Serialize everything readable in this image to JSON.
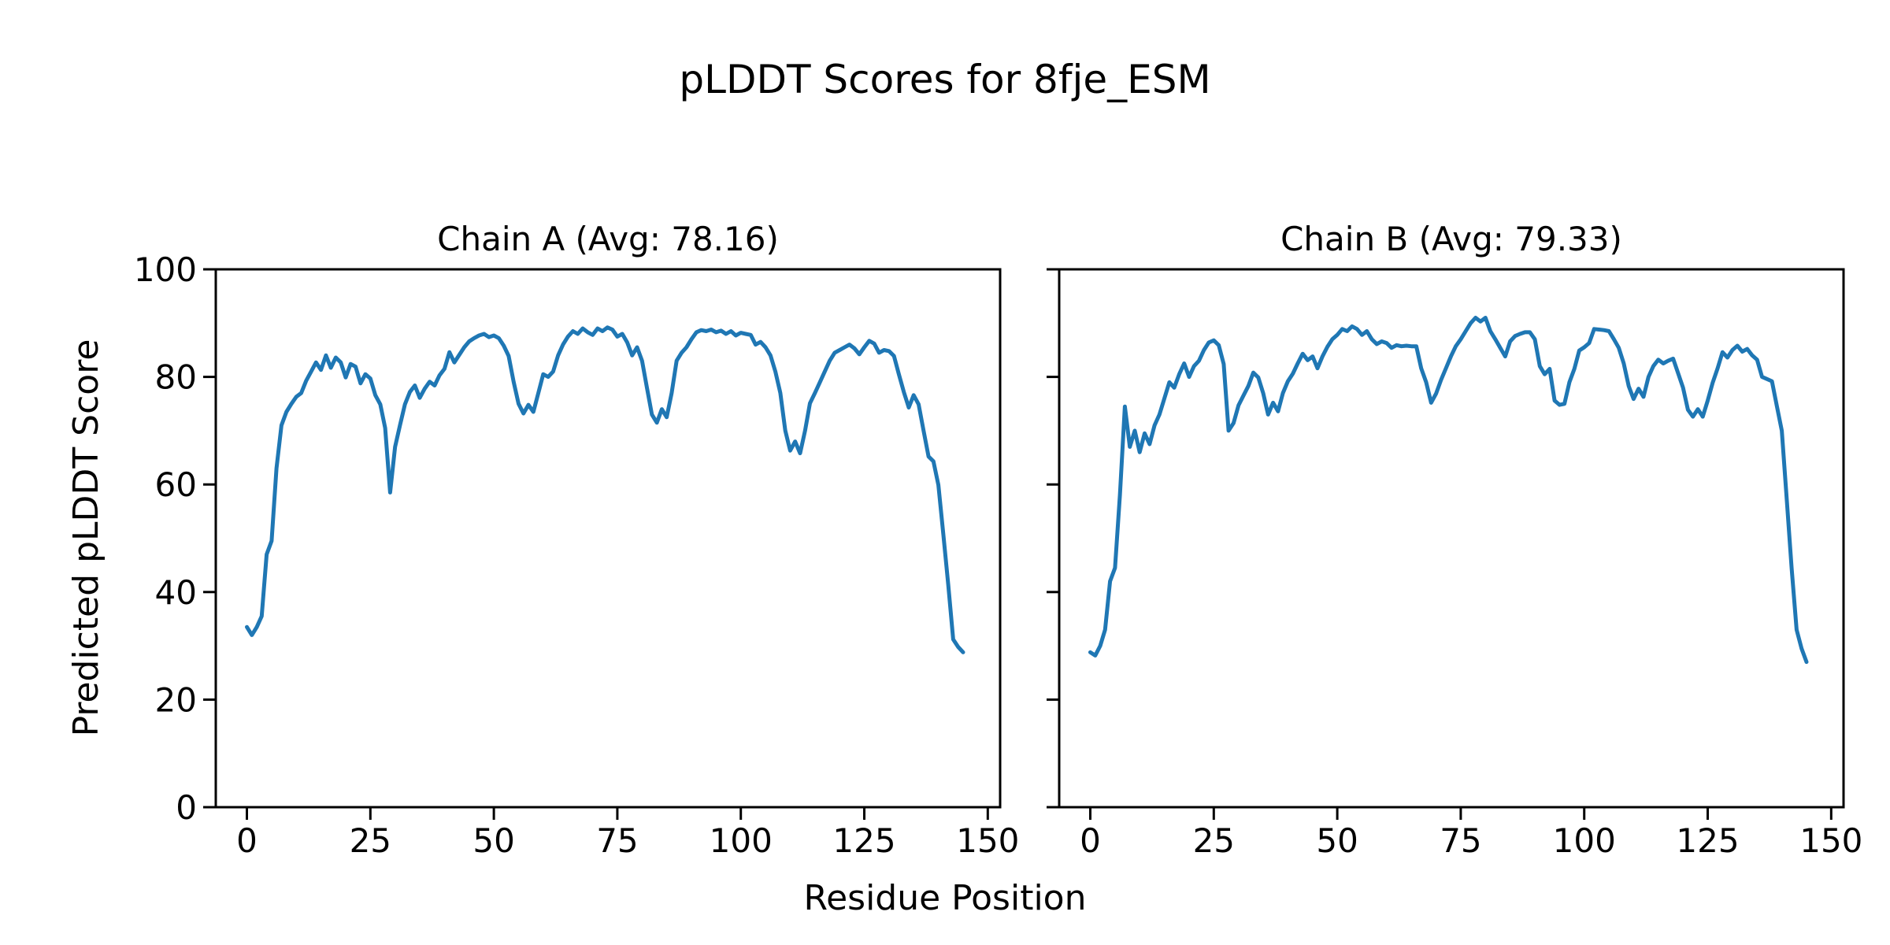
{
  "figure": {
    "title": "pLDDT Scores for 8fje_ESM",
    "xlabel": "Residue Position",
    "ylabel": "Predicted pLDDT Score",
    "background_color": "#ffffff",
    "line_color": "#1f77b4",
    "spine_color": "#000000"
  },
  "chart_data": [
    {
      "type": "line",
      "chain": "A",
      "title": "Chain A (Avg: 78.16)",
      "avg": 78.16,
      "legend": "none",
      "grid": false,
      "x_ticks": [
        0,
        25,
        50,
        75,
        100,
        125,
        150
      ],
      "y_ticks": [
        0,
        20,
        40,
        60,
        80,
        100
      ],
      "show_y_tick_labels": true,
      "xlim": [
        -6.3,
        152.5
      ],
      "ylim": [
        0,
        100
      ],
      "x": [
        0,
        1,
        2,
        3,
        4,
        5,
        6,
        7,
        8,
        9,
        10,
        11,
        12,
        13,
        14,
        15,
        16,
        17,
        18,
        19,
        20,
        21,
        22,
        23,
        24,
        25,
        26,
        27,
        28,
        29,
        30,
        31,
        32,
        33,
        34,
        35,
        36,
        37,
        38,
        39,
        40,
        41,
        42,
        43,
        44,
        45,
        46,
        47,
        48,
        49,
        50,
        51,
        52,
        53,
        54,
        55,
        56,
        57,
        58,
        59,
        60,
        61,
        62,
        63,
        64,
        65,
        66,
        67,
        68,
        69,
        70,
        71,
        72,
        73,
        74,
        75,
        76,
        77,
        78,
        79,
        80,
        81,
        82,
        83,
        84,
        85,
        86,
        87,
        88,
        89,
        90,
        91,
        92,
        93,
        94,
        95,
        96,
        97,
        98,
        99,
        100,
        101,
        102,
        103,
        104,
        105,
        106,
        107,
        108,
        109,
        110,
        111,
        112,
        113,
        114,
        115,
        116,
        117,
        118,
        119,
        120,
        121,
        122,
        123,
        124,
        125,
        126,
        127,
        128,
        129,
        130,
        131,
        132,
        133,
        134,
        135,
        136,
        137,
        138,
        139,
        140,
        141,
        142,
        143,
        144,
        145
      ],
      "values": [
        33.5,
        32,
        33.5,
        35.5,
        47,
        49.5,
        63,
        71,
        73.5,
        75,
        76.3,
        77,
        79.3,
        81,
        82.7,
        81.3,
        84,
        81.7,
        83.6,
        82.7,
        79.9,
        82.4,
        81.9,
        78.8,
        80.5,
        79.7,
        76.6,
        74.9,
        70.5,
        58.5,
        67,
        71,
        74.9,
        77.2,
        78.4,
        76.1,
        77.8,
        79.1,
        78.4,
        80.3,
        81.5,
        84.6,
        82.7,
        84.1,
        85.5,
        86.6,
        87.2,
        87.7,
        88,
        87.4,
        87.7,
        87.2,
        85.8,
        83.9,
        79.1,
        75,
        73.2,
        74.8,
        73.5,
        77,
        80.5,
        80,
        81,
        84,
        86,
        87.5,
        88.5,
        88,
        89,
        88.3,
        87.8,
        89,
        88.5,
        89.2,
        88.8,
        87.5,
        88,
        86.4,
        84,
        85.5,
        83,
        78,
        73,
        71.5,
        74,
        72.5,
        77,
        83,
        84.5,
        85.5,
        87,
        88.3,
        88.7,
        88.5,
        88.8,
        88.3,
        88.6,
        88,
        88.5,
        87.7,
        88.2,
        88,
        87.8,
        86,
        86.5,
        85.5,
        84,
        81,
        77,
        70,
        66.3,
        68,
        65.8,
        70,
        75.1,
        77,
        79,
        81,
        83,
        84.5,
        85,
        85.5,
        86,
        85.3,
        84.2,
        85.5,
        86.7,
        86.2,
        84.5,
        85,
        84.8,
        83.9,
        80.5,
        77.2,
        74.3,
        76.6,
        74.9,
        70,
        65.2,
        64.3,
        59.9,
        50.7,
        41.4,
        31.2,
        29.8,
        28.8
      ]
    },
    {
      "type": "line",
      "chain": "B",
      "title": "Chain B (Avg: 79.33)",
      "avg": 79.33,
      "legend": "none",
      "grid": false,
      "x_ticks": [
        0,
        25,
        50,
        75,
        100,
        125,
        150
      ],
      "y_ticks": [
        0,
        20,
        40,
        60,
        80,
        100
      ],
      "show_y_tick_labels": false,
      "xlim": [
        -6.3,
        152.5
      ],
      "ylim": [
        0,
        100
      ],
      "x": [
        0,
        1,
        2,
        3,
        4,
        5,
        6,
        7,
        8,
        9,
        10,
        11,
        12,
        13,
        14,
        15,
        16,
        17,
        18,
        19,
        20,
        21,
        22,
        23,
        24,
        25,
        26,
        27,
        28,
        29,
        30,
        31,
        32,
        33,
        34,
        35,
        36,
        37,
        38,
        39,
        40,
        41,
        42,
        43,
        44,
        45,
        46,
        47,
        48,
        49,
        50,
        51,
        52,
        53,
        54,
        55,
        56,
        57,
        58,
        59,
        60,
        61,
        62,
        63,
        64,
        65,
        66,
        67,
        68,
        69,
        70,
        71,
        72,
        73,
        74,
        75,
        76,
        77,
        78,
        79,
        80,
        81,
        82,
        83,
        84,
        85,
        86,
        87,
        88,
        89,
        90,
        91,
        92,
        93,
        94,
        95,
        96,
        97,
        98,
        99,
        100,
        101,
        102,
        103,
        104,
        105,
        106,
        107,
        108,
        109,
        110,
        111,
        112,
        113,
        114,
        115,
        116,
        117,
        118,
        119,
        120,
        121,
        122,
        123,
        124,
        125,
        126,
        127,
        128,
        129,
        130,
        131,
        132,
        133,
        134,
        135,
        136,
        137,
        138,
        139,
        140,
        141,
        142,
        143,
        144,
        145
      ],
      "values": [
        28.8,
        28.2,
        30,
        33,
        42,
        44.5,
        58,
        74.5,
        67,
        70,
        66,
        69.5,
        67.5,
        71,
        73,
        76,
        79,
        78,
        80.5,
        82.5,
        80,
        82,
        83,
        85,
        86.4,
        86.8,
        85.9,
        82.4,
        70,
        71.4,
        74.7,
        76.5,
        78.3,
        80.8,
        79.9,
        77,
        73,
        75.2,
        73.6,
        77,
        79.2,
        80.6,
        82.5,
        84.3,
        83.1,
        83.8,
        81.6,
        83.8,
        85.6,
        87,
        87.8,
        88.9,
        88.5,
        89.4,
        88.9,
        87.8,
        88.5,
        87,
        86.1,
        86.6,
        86.3,
        85.4,
        85.9,
        85.7,
        85.8,
        85.7,
        85.7,
        81.6,
        79,
        75.2,
        76.9,
        79.4,
        81.6,
        83.8,
        85.7,
        87,
        88.5,
        90,
        91,
        90.3,
        91,
        88.5,
        87,
        85.4,
        83.8,
        86.6,
        87.6,
        88,
        88.3,
        88.3,
        87,
        82,
        80.5,
        81.5,
        75.6,
        74.8,
        75,
        79,
        81.5,
        84.9,
        85.5,
        86.3,
        88.9,
        88.8,
        88.7,
        88.5,
        87,
        85.4,
        82.5,
        78.3,
        75.9,
        77.8,
        76.3,
        80,
        82,
        83.2,
        82.5,
        83,
        83.4,
        80.7,
        78,
        73.9,
        72.6,
        74,
        72.6,
        75.6,
        78.9,
        81.6,
        84.6,
        83.6,
        85,
        85.8,
        84.7,
        85.2,
        84,
        83.2,
        80,
        79.6,
        79.2,
        74.6,
        70,
        57.2,
        44.4,
        33,
        29.5,
        27
      ]
    }
  ]
}
